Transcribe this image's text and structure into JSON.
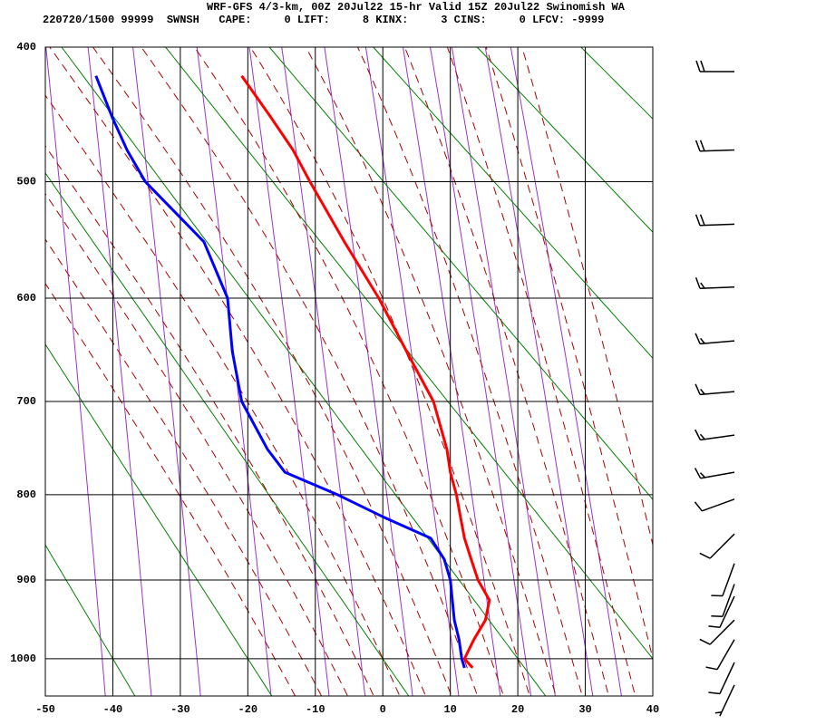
{
  "chart_data": {
    "type": "sounding",
    "title": "WRF-GFS 4/3-km, 00Z 20Jul22 15-hr Valid 15Z 20Jul22 Swinomish WA",
    "subtitle": "220720/1500 99999  SWNSH   CAPE:     0 LIFT:     8 KINX:     3 CINS:     0 LFCV: -9999",
    "xlim": [
      -50,
      40
    ],
    "xticks": [
      -50,
      -40,
      -30,
      -20,
      -10,
      0,
      10,
      20,
      30,
      40
    ],
    "ylim": [
      400,
      1050
    ],
    "yticks": [
      400,
      500,
      600,
      700,
      800,
      900,
      1000
    ],
    "grid": true,
    "y": [
      420,
      450,
      475,
      500,
      550,
      600,
      650,
      700,
      750,
      775,
      800,
      825,
      850,
      875,
      900,
      925,
      950,
      975,
      1000,
      1012
    ],
    "series": [
      {
        "color": "#ff0000",
        "values": [
          -20.9,
          -16.6,
          -13.3,
          -10.8,
          -5.7,
          -0.6,
          3.5,
          7.5,
          9.5,
          10.0,
          10.9,
          11.5,
          12.1,
          13.1,
          14.1,
          15.8,
          15.2,
          13.5,
          12.1,
          13.3
        ]
      },
      {
        "color": "#0000ff",
        "values": [
          -42.5,
          -40.1,
          -37.9,
          -35.2,
          -26.5,
          -23.0,
          -22.3,
          -20.9,
          -17.1,
          -14.5,
          -6.7,
          0.0,
          7.1,
          9.1,
          10.0,
          10.3,
          10.6,
          11.3,
          11.7,
          12.1
        ]
      }
    ],
    "wind": {
      "pressure": [
        417,
        475,
        535,
        590,
        640,
        690,
        735,
        775,
        805,
        845,
        880,
        905,
        920,
        950,
        975,
        1005,
        1035
      ],
      "direction": [
        270,
        268,
        268,
        268,
        265,
        265,
        262,
        260,
        250,
        225,
        200,
        200,
        205,
        225,
        210,
        205,
        205
      ],
      "speed": [
        20,
        20,
        20,
        15,
        15,
        15,
        15,
        15,
        10,
        10,
        10,
        10,
        10,
        10,
        10,
        10,
        5
      ]
    }
  }
}
